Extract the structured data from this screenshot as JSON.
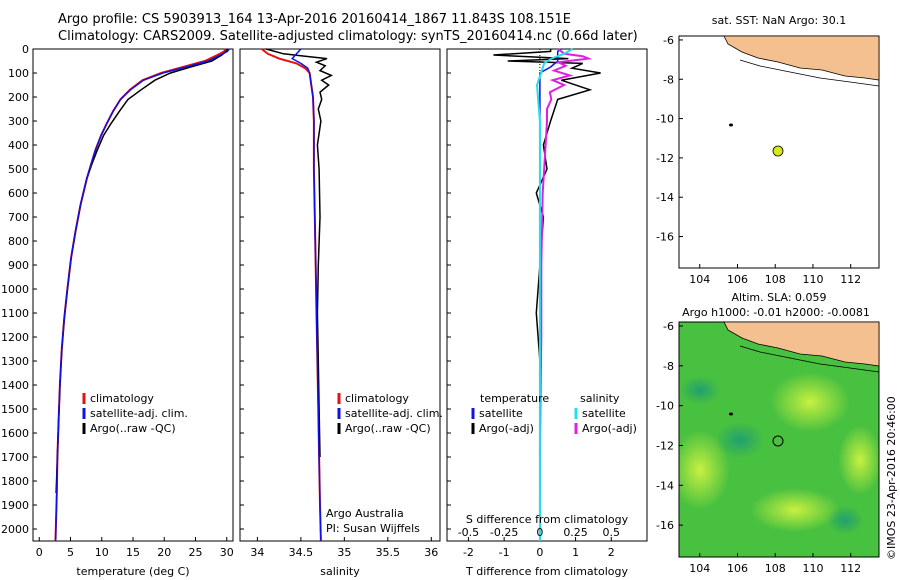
{
  "header": {
    "line1": "Argo profile: CS 5903913_164 13-Apr-2016 20160414_1867 11.843S 108.151E",
    "line2": "Climatology: CARS2009. Satellite-adjusted climatology: synTS_20160414.nc (0.66d later)"
  },
  "colors": {
    "climatology": "#e81010",
    "satellite_clim": "#1010e8",
    "argo": "#000000",
    "salinity_satellite": "#20e0e8",
    "salinity_argo": "#e020e0",
    "land": "#f4c090",
    "float_marker": "#d8e818",
    "sla_base": "#40c040"
  },
  "depth_axis": {
    "ticks": [
      "0",
      "100",
      "200",
      "300",
      "400",
      "500",
      "600",
      "700",
      "800",
      "900",
      "1000",
      "1100",
      "1200",
      "1300",
      "1400",
      "1500",
      "1600",
      "1700",
      "1800",
      "1900",
      "2000"
    ]
  },
  "panels": {
    "temperature": {
      "xlabel": "temperature (deg C)",
      "xticks": [
        "0",
        "5",
        "10",
        "15",
        "20",
        "25",
        "30"
      ],
      "legend": [
        "climatology",
        "satellite-adj. clim.",
        "Argo(..raw -QC)"
      ]
    },
    "salinity": {
      "xlabel": "salinity",
      "xticks": [
        "34",
        "34.5",
        "35",
        "35.5",
        "36"
      ],
      "legend": [
        "climatology",
        "satellite-adj. clim.",
        "Argo(..raw -QC)"
      ],
      "credit1": "Argo Australia",
      "credit2": "PI: Susan Wijffels"
    },
    "difference": {
      "xlabel": "T difference from climatology",
      "xticks": [
        "-2",
        "-1",
        "0",
        "1",
        "2"
      ],
      "top_label": "S difference from climatology",
      "top_ticks": [
        "-0.5",
        "-0.25",
        "0",
        "0.25",
        "0.5"
      ],
      "legend_t_title": "temperature",
      "legend_t": [
        "satellite",
        "Argo(-adj)"
      ],
      "legend_s_title": "salinity",
      "legend_s": [
        "satellite",
        "Argo(-adj)"
      ]
    }
  },
  "maps": {
    "sst": {
      "title": "sat. SST: NaN Argo: 30.1",
      "yticks": [
        "-6",
        "-8",
        "-10",
        "-12",
        "-14",
        "-16"
      ],
      "xticks": [
        "104",
        "106",
        "108",
        "110",
        "112"
      ]
    },
    "sla": {
      "title1": "Altim. SLA: 0.059",
      "title2": "Argo h1000: -0.01 h2000: -0.0081",
      "yticks": [
        "-6",
        "-8",
        "-10",
        "-12",
        "-14",
        "-16"
      ],
      "xticks": [
        "104",
        "106",
        "108",
        "110",
        "112"
      ]
    },
    "float_position": {
      "lon": 108.151,
      "lat": -11.843
    }
  },
  "footer": "©IMOS 23-Apr-2016 20:46:00",
  "chart_data": [
    {
      "type": "line",
      "title": "",
      "xlabel": "temperature (deg C)",
      "ylabel": "",
      "xlim": [
        -1,
        31
      ],
      "ylim": [
        2050,
        0
      ],
      "series": [
        {
          "name": "climatology",
          "x": [
            29.8,
            29.6,
            28.5,
            26.5,
            23.0,
            19.5,
            16.5,
            14.5,
            13.0,
            11.8,
            10.8,
            9.9,
            9.0,
            8.3,
            7.6,
            6.6,
            5.8,
            5.1,
            4.5,
            4.0,
            3.6,
            3.3,
            3.1,
            2.9,
            2.8,
            2.6
          ],
          "y": [
            0,
            10,
            25,
            50,
            75,
            100,
            130,
            170,
            210,
            260,
            310,
            360,
            420,
            480,
            540,
            650,
            760,
            870,
            1000,
            1120,
            1250,
            1400,
            1550,
            1700,
            1850,
            2050
          ]
        },
        {
          "name": "satellite-adj. clim.",
          "x": [
            30.4,
            30.1,
            29.0,
            27.0,
            23.5,
            19.8,
            16.7,
            14.6,
            13.0,
            11.8,
            10.8,
            9.9,
            9.0,
            8.3,
            7.6,
            6.6,
            5.8,
            5.1,
            4.5,
            4.0,
            3.6,
            3.3,
            3.1,
            2.9,
            2.8,
            2.6
          ],
          "y": [
            0,
            10,
            25,
            50,
            75,
            100,
            130,
            170,
            210,
            260,
            310,
            360,
            420,
            480,
            540,
            650,
            760,
            870,
            1000,
            1120,
            1250,
            1400,
            1550,
            1700,
            1850,
            2050
          ]
        },
        {
          "name": "Argo(..raw -QC)",
          "x": [
            30.1,
            29.9,
            29.2,
            27.6,
            24.2,
            21.0,
            18.5,
            16.3,
            14.2,
            12.8,
            11.5,
            10.3,
            9.3,
            8.4,
            7.6,
            6.6,
            5.8,
            5.1,
            4.5,
            4.0,
            3.6,
            3.3,
            3.1,
            2.9,
            2.7
          ],
          "y": [
            0,
            10,
            25,
            50,
            75,
            100,
            130,
            170,
            210,
            260,
            310,
            360,
            420,
            480,
            540,
            650,
            760,
            870,
            1000,
            1120,
            1250,
            1400,
            1550,
            1700,
            1850
          ]
        }
      ]
    },
    {
      "type": "line",
      "title": "",
      "xlabel": "salinity",
      "ylabel": "",
      "xlim": [
        33.8,
        36.1
      ],
      "ylim": [
        2050,
        0
      ],
      "series": [
        {
          "name": "climatology",
          "x": [
            34.05,
            34.12,
            34.25,
            34.45,
            34.55,
            34.6,
            34.62,
            34.64,
            34.65,
            34.65,
            34.65,
            34.66,
            34.67,
            34.68,
            34.69,
            34.7,
            34.71,
            34.72,
            34.73
          ],
          "y": [
            0,
            20,
            40,
            60,
            80,
            100,
            150,
            200,
            300,
            400,
            500,
            700,
            900,
            1100,
            1300,
            1500,
            1700,
            1900,
            2050
          ]
        },
        {
          "name": "satellite-adj. clim.",
          "x": [
            34.5,
            34.45,
            34.4,
            34.5,
            34.58,
            34.6,
            34.62,
            34.64,
            34.65,
            34.65,
            34.65,
            34.66,
            34.67,
            34.68,
            34.69,
            34.7,
            34.71,
            34.72,
            34.73
          ],
          "y": [
            0,
            20,
            40,
            60,
            80,
            100,
            150,
            200,
            300,
            400,
            500,
            700,
            900,
            1100,
            1300,
            1500,
            1700,
            1900,
            2050
          ]
        },
        {
          "name": "Argo(..raw -QC)",
          "x": [
            34.1,
            34.3,
            34.55,
            34.8,
            34.68,
            34.78,
            34.72,
            34.85,
            34.74,
            34.82,
            34.72,
            34.74,
            34.7,
            34.73,
            34.69,
            34.71,
            34.72,
            34.7,
            34.69,
            34.7,
            34.71,
            34.72
          ],
          "y": [
            0,
            20,
            30,
            40,
            55,
            70,
            90,
            110,
            130,
            150,
            180,
            210,
            250,
            300,
            400,
            500,
            700,
            900,
            1100,
            1300,
            1500,
            1700
          ]
        }
      ]
    },
    {
      "type": "line",
      "title": "",
      "xlabel": "T difference from climatology",
      "ylabel": "",
      "xlim": [
        -2.6,
        3.0
      ],
      "ylim": [
        2050,
        0
      ],
      "series": [
        {
          "name": "temperature satellite",
          "x": [
            0.6,
            0.5,
            0.5,
            0.5,
            0.3,
            0.0,
            0.0
          ],
          "y": [
            0,
            10,
            25,
            50,
            75,
            100,
            2050
          ]
        },
        {
          "name": "temperature Argo(-adj)",
          "x": [
            0.3,
            0.3,
            -1.3,
            0.8,
            -0.9,
            1.2,
            0.9,
            1.7,
            0.6,
            1.4,
            0.5,
            0.3,
            0.1,
            0.2,
            -0.1,
            0.1,
            0.0,
            -0.1,
            0.0,
            0.0,
            0.0
          ],
          "y": [
            0,
            10,
            25,
            40,
            50,
            60,
            80,
            100,
            130,
            170,
            210,
            300,
            400,
            500,
            600,
            700,
            900,
            1100,
            1300,
            1600,
            1850
          ]
        },
        {
          "name": "salinity satellite",
          "x": [
            0.23,
            0.17,
            0.08,
            0.03,
            0.02,
            -0.02,
            0.0,
            0.0,
            0.0,
            0.0
          ],
          "y": [
            0,
            20,
            40,
            60,
            80,
            150,
            300,
            800,
            1500,
            2050
          ]
        },
        {
          "name": "salinity Argo(-adj)",
          "x": [
            0.13,
            0.17,
            0.3,
            0.34,
            0.13,
            0.18,
            0.1,
            0.21,
            0.09,
            0.17,
            0.07,
            0.08,
            0.05,
            0.05,
            0.04,
            0.02,
            0.01,
            0.01,
            0.0
          ],
          "y": [
            0,
            20,
            30,
            40,
            55,
            70,
            90,
            110,
            130,
            150,
            180,
            210,
            250,
            300,
            400,
            600,
            900,
            1200,
            1700
          ]
        }
      ]
    }
  ]
}
